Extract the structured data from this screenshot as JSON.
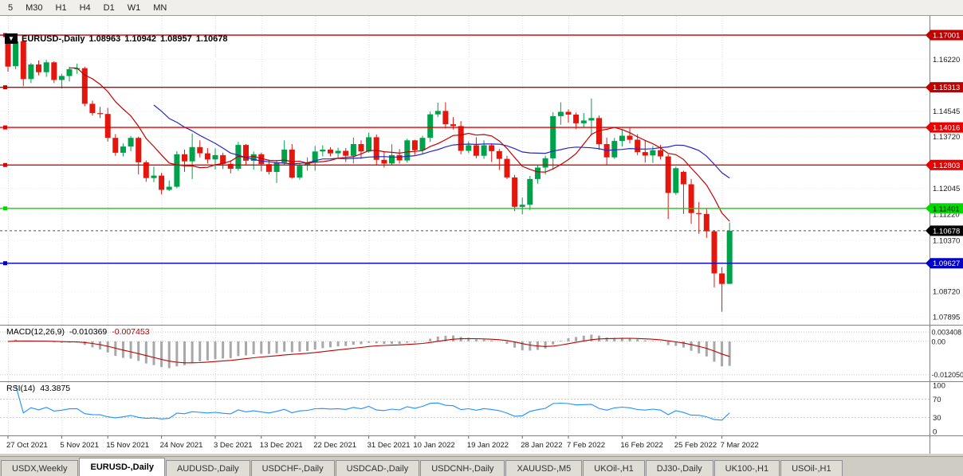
{
  "toolbar": {
    "timeframes": [
      "5",
      "M30",
      "H1",
      "H4",
      "D1",
      "W1",
      "MN"
    ]
  },
  "chart_data": {
    "type": "candlestick",
    "title": {
      "symbol_period": "EURUSD-,Daily",
      "open": "1.08963",
      "high": "1.10942",
      "low": "1.08957",
      "close": "1.10678"
    },
    "price_range": [
      1.0764,
      1.1762
    ],
    "price_axis_labels": [
      "1.16220",
      "1.14545",
      "1.13720",
      "1.12045",
      "1.11220",
      "1.10370",
      "1.08720",
      "1.07895"
    ],
    "hlines": [
      {
        "value": 1.17001,
        "label": "1.17001",
        "color": "#C00000",
        "label_text_color": "#FFFFFF"
      },
      {
        "value": 1.15313,
        "label": "1.15313",
        "color": "#C00000",
        "label_text_color": "#FFFFFF"
      },
      {
        "value": 1.14016,
        "label": "1.14016",
        "color": "#E80000",
        "label_text_color": "#FFFFFF"
      },
      {
        "value": 1.12803,
        "label": "1.12803",
        "color": "#E80000",
        "label_text_color": "#FFFFFF"
      },
      {
        "value": 1.11401,
        "label": "1.11401",
        "color": "#00D800",
        "label_text_color": "#000000"
      },
      {
        "value": 1.09627,
        "label": "1.09627",
        "color": "#0000C8",
        "label_text_color": "#FFFFFF"
      }
    ],
    "current_price": {
      "value": 1.10678,
      "label": "1.10678",
      "label_bg": "#000000",
      "label_text_color": "#FFFFFF"
    },
    "candle_up_color": "#00A14B",
    "candle_down_color": "#E3170D",
    "ma_fast": {
      "period": 9,
      "color": "#C00000"
    },
    "ma_slow": {
      "period": 20,
      "color": "#2626C8"
    },
    "date_labels": [
      {
        "text": "27 Oct 2021",
        "index": 0
      },
      {
        "text": "5 Nov 2021",
        "index": 7
      },
      {
        "text": "15 Nov 2021",
        "index": 13
      },
      {
        "text": "24 Nov 2021",
        "index": 20
      },
      {
        "text": "3 Dec 2021",
        "index": 27
      },
      {
        "text": "13 Dec 2021",
        "index": 33
      },
      {
        "text": "22 Dec 2021",
        "index": 40
      },
      {
        "text": "31 Dec 2021",
        "index": 47
      },
      {
        "text": "10 Jan 2022",
        "index": 53
      },
      {
        "text": "19 Jan 2022",
        "index": 60
      },
      {
        "text": "28 Jan 2022",
        "index": 67
      },
      {
        "text": "7 Feb 2022",
        "index": 73
      },
      {
        "text": "16 Feb 2022",
        "index": 80
      },
      {
        "text": "25 Feb 2022",
        "index": 87
      },
      {
        "text": "7 Mar 2022",
        "index": 93
      }
    ],
    "ohlc": [
      [
        1.1674,
        1.1692,
        1.1582,
        1.1598
      ],
      [
        1.16,
        1.1688,
        1.159,
        1.168
      ],
      [
        1.168,
        1.1686,
        1.1535,
        1.1558
      ],
      [
        1.1558,
        1.161,
        1.1545,
        1.1605
      ],
      [
        1.1605,
        1.1618,
        1.157,
        1.158
      ],
      [
        1.158,
        1.162,
        1.1565,
        1.1612
      ],
      [
        1.1612,
        1.1616,
        1.1545,
        1.1555
      ],
      [
        1.1555,
        1.1575,
        1.1528,
        1.1568
      ],
      [
        1.1568,
        1.1598,
        1.155,
        1.159
      ],
      [
        1.159,
        1.1608,
        1.1575,
        1.1593
      ],
      [
        1.1593,
        1.1598,
        1.147,
        1.1478
      ],
      [
        1.1478,
        1.1488,
        1.144,
        1.1448
      ],
      [
        1.1448,
        1.1468,
        1.1432,
        1.1445
      ],
      [
        1.1445,
        1.1465,
        1.1356,
        1.1368
      ],
      [
        1.1368,
        1.138,
        1.131,
        1.132
      ],
      [
        1.132,
        1.135,
        1.1308,
        1.134
      ],
      [
        1.134,
        1.1374,
        1.1325,
        1.1368
      ],
      [
        1.1368,
        1.1372,
        1.125,
        1.1289
      ],
      [
        1.1289,
        1.1295,
        1.1226,
        1.1238
      ],
      [
        1.1238,
        1.1275,
        1.1225,
        1.1246
      ],
      [
        1.1246,
        1.1255,
        1.1185,
        1.12
      ],
      [
        1.12,
        1.123,
        1.1196,
        1.121
      ],
      [
        1.121,
        1.1325,
        1.1205,
        1.1315
      ],
      [
        1.1315,
        1.133,
        1.1258,
        1.1292
      ],
      [
        1.1292,
        1.1382,
        1.1235,
        1.1338
      ],
      [
        1.1338,
        1.136,
        1.1305,
        1.1318
      ],
      [
        1.1318,
        1.1335,
        1.1285,
        1.1298
      ],
      [
        1.1298,
        1.1334,
        1.1266,
        1.1312
      ],
      [
        1.1312,
        1.132,
        1.1267,
        1.1284
      ],
      [
        1.1284,
        1.1295,
        1.1253,
        1.1268
      ],
      [
        1.1268,
        1.1355,
        1.1262,
        1.1345
      ],
      [
        1.1345,
        1.1348,
        1.128,
        1.1294
      ],
      [
        1.1294,
        1.1324,
        1.1265,
        1.1315
      ],
      [
        1.1315,
        1.132,
        1.126,
        1.1283
      ],
      [
        1.1283,
        1.1298,
        1.125,
        1.1258
      ],
      [
        1.1258,
        1.1296,
        1.1222,
        1.1288
      ],
      [
        1.1288,
        1.136,
        1.128,
        1.133
      ],
      [
        1.133,
        1.1348,
        1.1236,
        1.124
      ],
      [
        1.124,
        1.1285,
        1.1233,
        1.1278
      ],
      [
        1.1278,
        1.1305,
        1.1262,
        1.1288
      ],
      [
        1.1288,
        1.1342,
        1.1262,
        1.1324
      ],
      [
        1.1324,
        1.1344,
        1.1308,
        1.133
      ],
      [
        1.133,
        1.1338,
        1.1308,
        1.1318
      ],
      [
        1.1318,
        1.1336,
        1.1304,
        1.1326
      ],
      [
        1.1326,
        1.1335,
        1.129,
        1.131
      ],
      [
        1.131,
        1.1369,
        1.1285,
        1.1348
      ],
      [
        1.1348,
        1.136,
        1.13,
        1.1324
      ],
      [
        1.1324,
        1.1385,
        1.132,
        1.137
      ],
      [
        1.137,
        1.1379,
        1.1279,
        1.1297
      ],
      [
        1.1297,
        1.1323,
        1.1272,
        1.1285
      ],
      [
        1.1285,
        1.1347,
        1.128,
        1.1312
      ],
      [
        1.1312,
        1.1332,
        1.1285,
        1.1295
      ],
      [
        1.1295,
        1.1365,
        1.1288,
        1.136
      ],
      [
        1.136,
        1.1362,
        1.1313,
        1.1328
      ],
      [
        1.1328,
        1.1375,
        1.1315,
        1.1368
      ],
      [
        1.1368,
        1.1453,
        1.1355,
        1.1444
      ],
      [
        1.1444,
        1.1482,
        1.1435,
        1.1455
      ],
      [
        1.1455,
        1.1483,
        1.1398,
        1.1412
      ],
      [
        1.1412,
        1.1435,
        1.1395,
        1.1406
      ],
      [
        1.1406,
        1.1422,
        1.1315,
        1.1326
      ],
      [
        1.1326,
        1.1357,
        1.1318,
        1.1344
      ],
      [
        1.1344,
        1.137,
        1.1302,
        1.131
      ],
      [
        1.131,
        1.136,
        1.13,
        1.1344
      ],
      [
        1.1344,
        1.135,
        1.129,
        1.1325
      ],
      [
        1.1325,
        1.1332,
        1.1264,
        1.13
      ],
      [
        1.13,
        1.131,
        1.1235,
        1.124
      ],
      [
        1.124,
        1.1248,
        1.1131,
        1.1145
      ],
      [
        1.1145,
        1.1175,
        1.1121,
        1.1152
      ],
      [
        1.1152,
        1.1245,
        1.1135,
        1.1235
      ],
      [
        1.1235,
        1.1279,
        1.122,
        1.1272
      ],
      [
        1.1272,
        1.131,
        1.125,
        1.1302
      ],
      [
        1.1302,
        1.1451,
        1.1265,
        1.1438
      ],
      [
        1.1438,
        1.1483,
        1.141,
        1.1452
      ],
      [
        1.1452,
        1.146,
        1.1417,
        1.1443
      ],
      [
        1.1443,
        1.145,
        1.1396,
        1.1415
      ],
      [
        1.1415,
        1.1448,
        1.1403,
        1.1424
      ],
      [
        1.1424,
        1.1495,
        1.1375,
        1.1432
      ],
      [
        1.1432,
        1.144,
        1.133,
        1.1348
      ],
      [
        1.1348,
        1.1369,
        1.1278,
        1.1305
      ],
      [
        1.1305,
        1.1368,
        1.13,
        1.1358
      ],
      [
        1.1358,
        1.1395,
        1.134,
        1.1375
      ],
      [
        1.1375,
        1.14,
        1.135,
        1.1362
      ],
      [
        1.1362,
        1.138,
        1.1312,
        1.1322
      ],
      [
        1.1322,
        1.136,
        1.1288,
        1.1311
      ],
      [
        1.1311,
        1.1342,
        1.1287,
        1.1328
      ],
      [
        1.1328,
        1.1345,
        1.1298,
        1.1308
      ],
      [
        1.1308,
        1.1315,
        1.1106,
        1.119
      ],
      [
        1.119,
        1.1275,
        1.1184,
        1.127
      ],
      [
        1.1258,
        1.1262,
        1.1122,
        1.1218
      ],
      [
        1.1218,
        1.1235,
        1.109,
        1.1125
      ],
      [
        1.1125,
        1.116,
        1.1058,
        1.1122
      ],
      [
        1.1122,
        1.114,
        1.1045,
        1.1066
      ],
      [
        1.1066,
        1.107,
        1.0885,
        1.093
      ],
      [
        1.093,
        1.095,
        1.0806,
        1.0896
      ],
      [
        1.08963,
        1.10942,
        1.08957,
        1.10678
      ]
    ]
  },
  "macd": {
    "label": "MACD(12,26,9)",
    "value_main": "-0.010369",
    "value_signal": "-0.007453",
    "axis_labels": [
      {
        "text": "0.003408",
        "value": 0.003408
      },
      {
        "text": "0.00",
        "value": 0
      },
      {
        "text": "-0.012050",
        "value": -0.01205
      }
    ],
    "range": [
      -0.0133,
      0.0046
    ],
    "histogram_color": "#A8A8A8",
    "signal_color": "#C00000"
  },
  "rsi": {
    "label": "RSI(14)",
    "value": "43.3875",
    "color": "#1E90FF",
    "levels": [
      70,
      30
    ],
    "axis_labels": [
      {
        "text": "100",
        "value": 100
      },
      {
        "text": "70",
        "value": 70
      },
      {
        "text": "30",
        "value": 30
      },
      {
        "text": "0",
        "value": 0
      }
    ],
    "range": [
      0,
      100
    ]
  },
  "tabs": [
    {
      "label": "USDX,Weekly",
      "active": false
    },
    {
      "label": "EURUSD-,Daily",
      "active": true
    },
    {
      "label": "AUDUSD-,Daily",
      "active": false
    },
    {
      "label": "USDCHF-,Daily",
      "active": false
    },
    {
      "label": "USDCAD-,Daily",
      "active": false
    },
    {
      "label": "USDCNH-,Daily",
      "active": false
    },
    {
      "label": "XAUUSD-,M5",
      "active": false
    },
    {
      "label": "UKOil-,H1",
      "active": false
    },
    {
      "label": "DJ30-,Daily",
      "active": false
    },
    {
      "label": "UK100-,H1",
      "active": false
    },
    {
      "label": "USOil-,H1",
      "active": false
    }
  ]
}
